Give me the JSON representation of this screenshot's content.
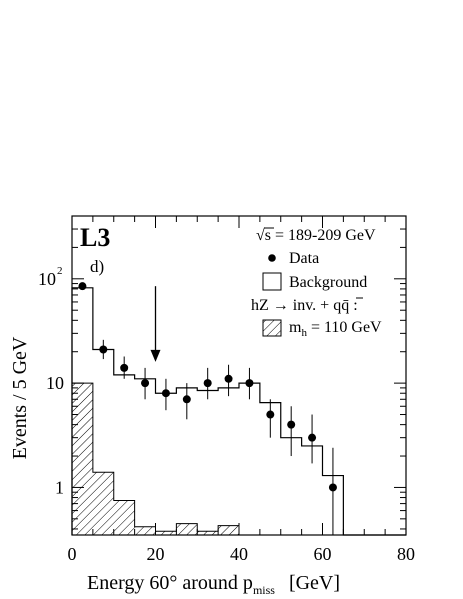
{
  "chart_data": {
    "type": "histogram",
    "experiment_label": "L3",
    "panel_label": "d)",
    "energy_label": "√s = 189-209 GeV",
    "xlabel": "Energy 60° around p",
    "xlabel_sub": "miss",
    "xlabel_unit": "[GeV]",
    "ylabel": "Events / 5 GeV",
    "xlim": [
      0,
      80
    ],
    "ylim": [
      0.35,
      400
    ],
    "y_log_scale": true,
    "x_ticks": [
      0,
      20,
      40,
      60,
      80
    ],
    "x_tick_labels": [
      "0",
      "20",
      "40",
      "60",
      "80"
    ],
    "y_major_ticks": [
      1,
      10,
      100
    ],
    "y_tick_labels": [
      "1",
      "10",
      "10"
    ],
    "y_tick_exponent": "2",
    "bin_edges": [
      0,
      5,
      10,
      15,
      20,
      25,
      30,
      35,
      40,
      45,
      50,
      55,
      60,
      65,
      70,
      75,
      80
    ],
    "background": [
      82,
      21,
      12,
      11,
      8,
      9,
      8.5,
      9,
      10,
      6.5,
      3,
      2.5,
      1.3,
      0.35,
      0.35,
      0.35
    ],
    "signal": [
      10,
      1.4,
      0.75,
      0.42,
      0.38,
      0.45,
      0.38,
      0.43,
      0.35,
      0.35,
      0.35,
      0.35,
      0.35,
      0.35,
      0.35,
      0.35
    ],
    "data_points": [
      {
        "x": 2.5,
        "y": 85,
        "lo": 80,
        "hi": 88
      },
      {
        "x": 7.5,
        "y": 21,
        "lo": 17,
        "hi": 26
      },
      {
        "x": 12.5,
        "y": 14,
        "lo": 11,
        "hi": 18
      },
      {
        "x": 17.5,
        "y": 10,
        "lo": 7,
        "hi": 14
      },
      {
        "x": 22.5,
        "y": 8,
        "lo": 5.5,
        "hi": 11
      },
      {
        "x": 27.5,
        "y": 7,
        "lo": 4.5,
        "hi": 10
      },
      {
        "x": 32.5,
        "y": 10,
        "lo": 7,
        "hi": 14
      },
      {
        "x": 37.5,
        "y": 11,
        "lo": 7.5,
        "hi": 15
      },
      {
        "x": 42.5,
        "y": 10,
        "lo": 7,
        "hi": 14
      },
      {
        "x": 47.5,
        "y": 5,
        "lo": 3,
        "hi": 7
      },
      {
        "x": 52.5,
        "y": 4,
        "lo": 2,
        "hi": 6
      },
      {
        "x": 57.5,
        "y": 3,
        "lo": 1.7,
        "hi": 5
      },
      {
        "x": 62.5,
        "y": 1,
        "lo": 0.3,
        "hi": 2.4
      }
    ],
    "cut_arrow": {
      "x": 20,
      "y_top": 85,
      "y_tip": 16
    },
    "legend": {
      "data_label": "Data",
      "background_label": "Background",
      "process_label": "hZ → inv. + qq̄ :",
      "signal_label_prefix": "m",
      "signal_label_sub": "h",
      "signal_label_suffix": " = 110 GeV",
      "placement": "top-right"
    }
  }
}
